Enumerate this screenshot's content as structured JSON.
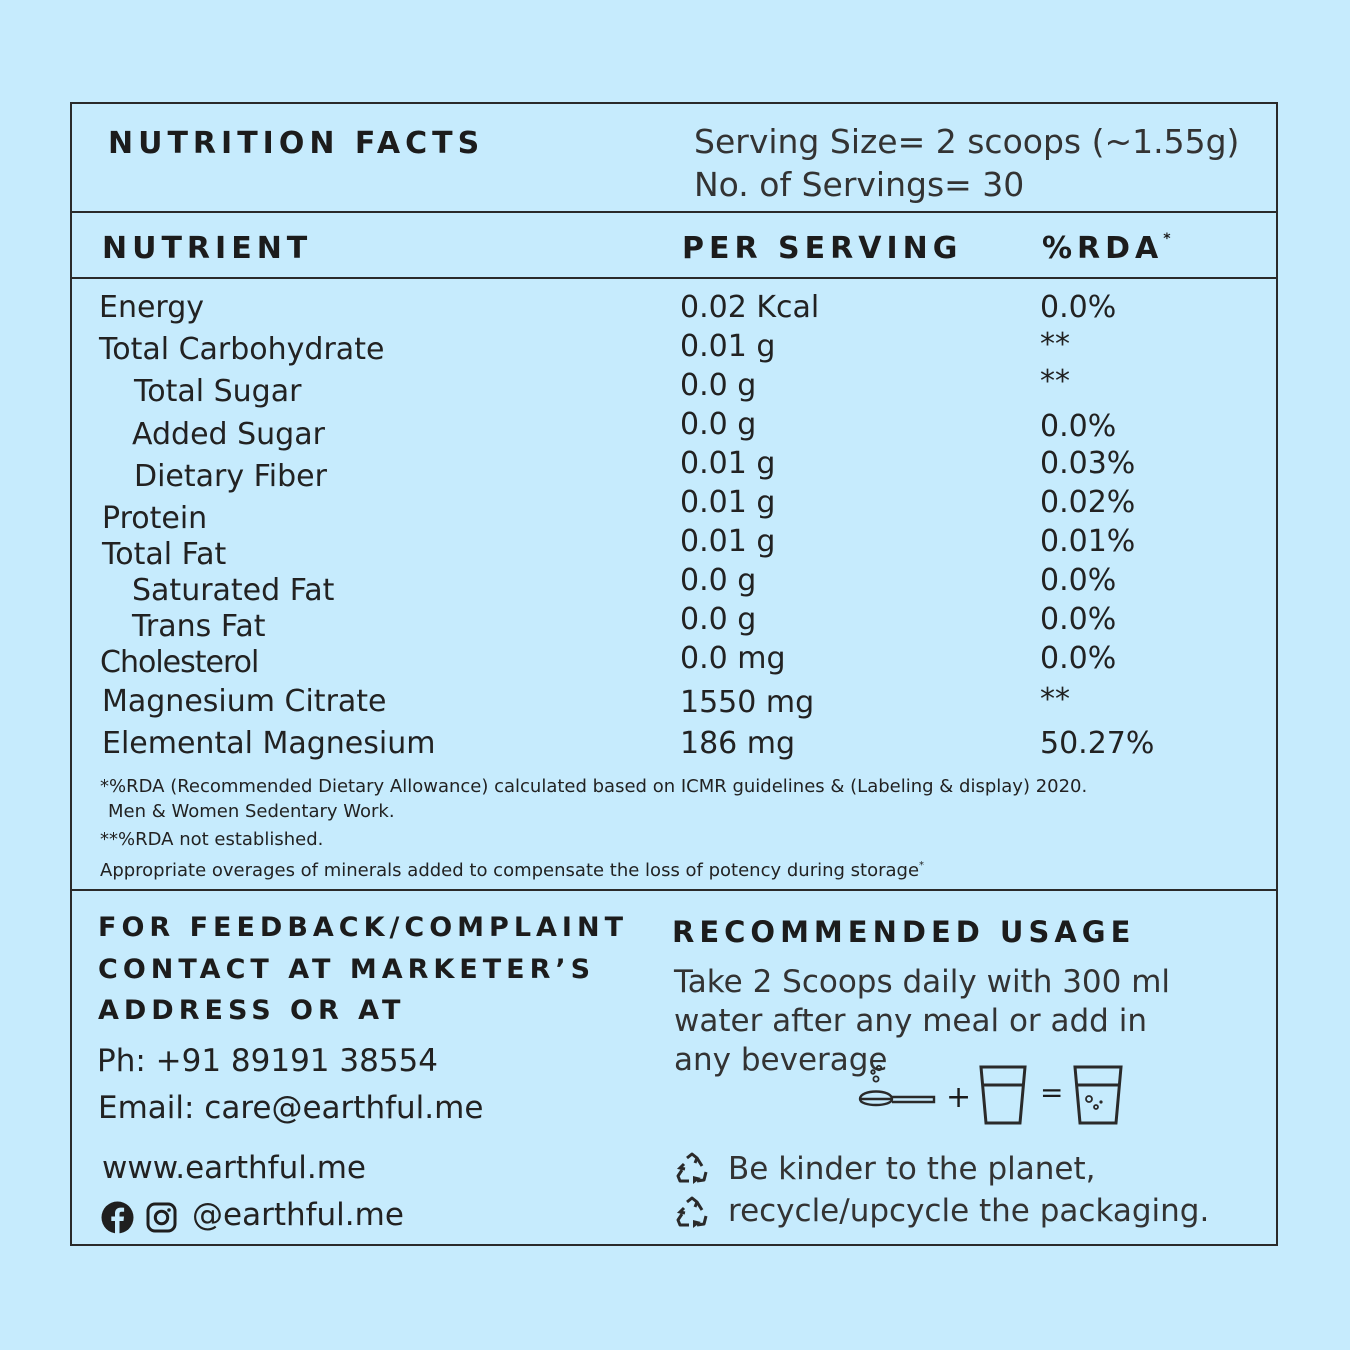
{
  "header": {
    "title": "NUTRITION FACTS",
    "serving_size": "Serving Size= 2 scoops (~1.55g)",
    "servings": "No. of Servings= 30"
  },
  "columns": {
    "nutrient": "NUTRIENT",
    "per_serving": "PER SERVING",
    "rda": "%RDA",
    "rda_mark": "*"
  },
  "rows": [
    {
      "name": "Energy",
      "value": "0.02 Kcal",
      "rda": "0.0%"
    },
    {
      "name": "Total Carbohydrate",
      "value": "0.01 g",
      "rda": "**"
    },
    {
      "name": "Total Sugar",
      "value": "0.0 g",
      "rda": "**"
    },
    {
      "name": "Added Sugar",
      "value": "0.0 g",
      "rda": "0.0%"
    },
    {
      "name": "Dietary Fiber",
      "value": "0.01 g",
      "rda": "0.03%"
    },
    {
      "name": "Protein",
      "value": "0.01 g",
      "rda": "0.02%"
    },
    {
      "name": "Total Fat",
      "value": "0.01 g",
      "rda": "0.01%"
    },
    {
      "name": "Saturated Fat",
      "value": "0.0 g",
      "rda": "0.0%"
    },
    {
      "name": "Trans Fat",
      "value": "0.0 g",
      "rda": "0.0%"
    },
    {
      "name": "Cholesterol",
      "value": "0.0 mg",
      "rda": "0.0%"
    },
    {
      "name": "Magnesium Citrate",
      "value": "1550 mg",
      "rda": "**"
    },
    {
      "name": "Elemental Magnesium",
      "value": "186 mg",
      "rda": "50.27%"
    }
  ],
  "footnotes": {
    "line1": "*%RDA (Recommended Dietary Allowance) calculated based on ICMR guidelines & (Labeling & display) 2020.",
    "line2": "Men & Women Sedentary Work.",
    "line3": "**%RDA not established.",
    "line4": "Appropriate overages of minerals added to compensate the loss of potency during storage",
    "line4_mark": "*"
  },
  "contact": {
    "heading_line1": "FOR FEEDBACK/COMPLAINT",
    "heading_line2": "CONTACT AT MARKETER’S",
    "heading_line3": "ADDRESS OR AT",
    "phone": "Ph: +91 89191 38554",
    "email": "Email: care@earthful.me",
    "website": "www.earthful.me",
    "social": "@earthful.me"
  },
  "usage": {
    "heading": "RECOMMENDED USAGE",
    "text": "Take 2 Scoops daily with 300 ml water after any meal or add in any beverage",
    "plus": "+",
    "equals": "="
  },
  "recycle": {
    "line1": "Be kinder to the planet,",
    "line2": "recycle/upcycle the packaging."
  },
  "icons": [
    "scoop-icon",
    "glass-icon",
    "mixed-glass-icon",
    "recycle-icon",
    "facebook-icon",
    "instagram-icon"
  ]
}
